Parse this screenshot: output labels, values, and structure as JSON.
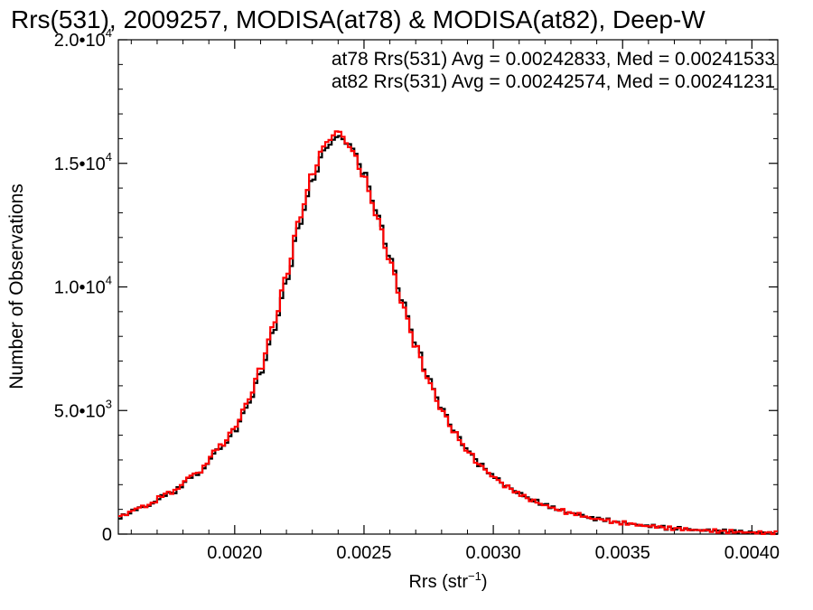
{
  "chart_data": {
    "type": "line",
    "step": true,
    "title": "Rrs(531), 2009257, MODISA(at78) & MODISA(at82), Deep-W",
    "xlabel": "Rrs (str",
    "xlabel_exp": "−1",
    "xlabel_close": ")",
    "ylabel": "Number of Observations",
    "xlim": [
      0.00155,
      0.0041
    ],
    "ylim": [
      0,
      20000
    ],
    "grid": false,
    "xticks": [
      {
        "v": 0.002,
        "label": "0.0020"
      },
      {
        "v": 0.0025,
        "label": "0.0025"
      },
      {
        "v": 0.003,
        "label": "0.0030"
      },
      {
        "v": 0.0035,
        "label": "0.0035"
      },
      {
        "v": 0.004,
        "label": "0.0040"
      }
    ],
    "yticks": [
      {
        "v": 0,
        "label": "0",
        "exp": ""
      },
      {
        "v": 5000,
        "label": "5.0•10",
        "exp": "3"
      },
      {
        "v": 10000,
        "label": "1.0•10",
        "exp": "4"
      },
      {
        "v": 15000,
        "label": "1.5•10",
        "exp": "4"
      },
      {
        "v": 20000,
        "label": "2.0•10",
        "exp": "4"
      }
    ],
    "legend_placement": "top-right",
    "legend": [
      {
        "text": "at78 Rrs(531) Avg = 0.00242833, Med = 0.00241533",
        "color": "#000000"
      },
      {
        "text": "at82 Rrs(531) Avg = 0.00242574, Med = 0.00241231",
        "color": "#ff0000"
      }
    ],
    "series": [
      {
        "name": "at78",
        "color": "#000000",
        "x": [
          0.00155,
          0.00165,
          0.00175,
          0.00185,
          0.00195,
          0.002,
          0.00205,
          0.0021,
          0.00215,
          0.0022,
          0.00225,
          0.0023,
          0.00235,
          0.0024,
          0.00245,
          0.0025,
          0.00255,
          0.0026,
          0.00265,
          0.0027,
          0.00275,
          0.0028,
          0.00285,
          0.0029,
          0.00295,
          0.003,
          0.00305,
          0.0031,
          0.00315,
          0.0032,
          0.00325,
          0.0033,
          0.0034,
          0.0035,
          0.0036,
          0.0037,
          0.0038,
          0.0039,
          0.004,
          0.0041
        ],
        "y": [
          700,
          1100,
          1650,
          2400,
          3500,
          4200,
          5200,
          6500,
          8200,
          10200,
          12500,
          14300,
          15600,
          16100,
          15700,
          14600,
          13000,
          11200,
          9400,
          7700,
          6300,
          5100,
          4150,
          3400,
          2800,
          2350,
          1950,
          1650,
          1380,
          1180,
          1000,
          850,
          620,
          450,
          330,
          230,
          160,
          110,
          70,
          40
        ]
      },
      {
        "name": "at82",
        "color": "#ff0000",
        "x": [
          0.00155,
          0.00165,
          0.00175,
          0.00185,
          0.00195,
          0.002,
          0.00205,
          0.0021,
          0.00215,
          0.0022,
          0.00225,
          0.0023,
          0.00235,
          0.0024,
          0.00245,
          0.0025,
          0.00255,
          0.0026,
          0.00265,
          0.0027,
          0.00275,
          0.0028,
          0.00285,
          0.0029,
          0.00295,
          0.003,
          0.00305,
          0.0031,
          0.00315,
          0.0032,
          0.00325,
          0.0033,
          0.0034,
          0.0035,
          0.0036,
          0.0037,
          0.0038,
          0.0039,
          0.004,
          0.0041
        ],
        "y": [
          720,
          1120,
          1680,
          2450,
          3580,
          4300,
          5350,
          6700,
          8450,
          10450,
          12750,
          14550,
          15800,
          16300,
          15600,
          14450,
          12850,
          11050,
          9250,
          7600,
          6200,
          5020,
          4100,
          3360,
          2770,
          2320,
          1930,
          1630,
          1360,
          1160,
          990,
          840,
          610,
          445,
          325,
          225,
          155,
          105,
          65,
          35
        ]
      }
    ]
  }
}
